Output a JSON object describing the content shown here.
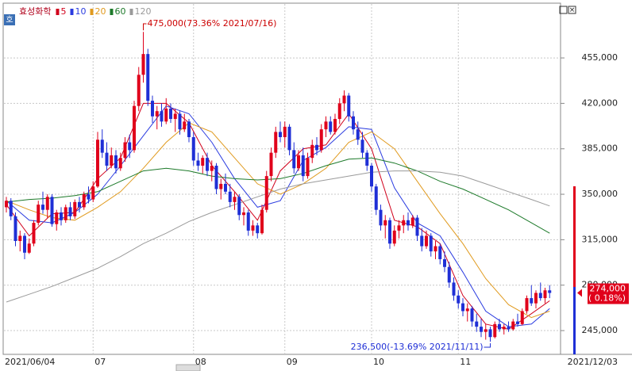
{
  "chart_data": {
    "type": "candlestick",
    "title": "효성화학",
    "up_color": "#e0001b",
    "down_color": "#1f2fd6",
    "categories": [
      "2021/06/04",
      null,
      null,
      null,
      null,
      null,
      null,
      null,
      null,
      null,
      null,
      null,
      null,
      null,
      null,
      null,
      null,
      null,
      null,
      "07",
      null,
      null,
      null,
      null,
      null,
      null,
      null,
      null,
      null,
      null,
      null,
      null,
      null,
      null,
      null,
      null,
      null,
      null,
      null,
      null,
      null,
      "08",
      null,
      null,
      null,
      null,
      null,
      null,
      null,
      null,
      null,
      null,
      null,
      null,
      null,
      null,
      null,
      null,
      null,
      null,
      null,
      "09",
      null,
      null,
      null,
      null,
      null,
      null,
      null,
      null,
      null,
      null,
      null,
      null,
      null,
      null,
      null,
      null,
      null,
      null,
      "10",
      null,
      null,
      null,
      null,
      null,
      null,
      null,
      null,
      null,
      null,
      null,
      null,
      null,
      null,
      null,
      null,
      null,
      null,
      "11",
      null,
      null,
      null,
      null,
      null,
      null,
      null,
      null,
      null,
      null,
      null,
      null,
      null,
      null,
      null,
      null,
      null,
      null,
      null
    ],
    "ohlc": [
      [
        340000,
        348000,
        336000,
        345000
      ],
      [
        345000,
        347000,
        330000,
        333000
      ],
      [
        333000,
        336000,
        310000,
        314000
      ],
      [
        314000,
        322000,
        306000,
        318000
      ],
      [
        318000,
        320000,
        300000,
        305000
      ],
      [
        305000,
        316000,
        304000,
        312000
      ],
      [
        312000,
        330000,
        310000,
        328000
      ],
      [
        328000,
        345000,
        326000,
        342000
      ],
      [
        342000,
        352000,
        335000,
        338000
      ],
      [
        338000,
        350000,
        332000,
        348000
      ],
      [
        348000,
        350000,
        325000,
        327000
      ],
      [
        327000,
        338000,
        322000,
        336000
      ],
      [
        336000,
        340000,
        326000,
        330000
      ],
      [
        330000,
        342000,
        328000,
        340000
      ],
      [
        340000,
        344000,
        330000,
        333000
      ],
      [
        333000,
        346000,
        331000,
        344000
      ],
      [
        344000,
        348000,
        336000,
        340000
      ],
      [
        340000,
        352000,
        338000,
        350000
      ],
      [
        350000,
        356000,
        343000,
        346000
      ],
      [
        346000,
        360000,
        344000,
        356000
      ],
      [
        356000,
        398000,
        355000,
        392000
      ],
      [
        392000,
        400000,
        378000,
        382000
      ],
      [
        382000,
        390000,
        368000,
        372000
      ],
      [
        372000,
        386000,
        370000,
        380000
      ],
      [
        380000,
        384000,
        366000,
        370000
      ],
      [
        370000,
        382000,
        368000,
        378000
      ],
      [
        378000,
        394000,
        375000,
        390000
      ],
      [
        390000,
        396000,
        378000,
        384000
      ],
      [
        384000,
        422000,
        382000,
        418000
      ],
      [
        418000,
        448000,
        414000,
        442000
      ],
      [
        442000,
        475000,
        436000,
        458000
      ],
      [
        458000,
        462000,
        418000,
        422000
      ],
      [
        422000,
        426000,
        405000,
        410000
      ],
      [
        410000,
        418000,
        400000,
        414000
      ],
      [
        414000,
        420000,
        402000,
        406000
      ],
      [
        406000,
        424000,
        404000,
        416000
      ],
      [
        416000,
        420000,
        405000,
        408000
      ],
      [
        408000,
        416000,
        398000,
        412000
      ],
      [
        412000,
        414000,
        396000,
        400000
      ],
      [
        400000,
        412000,
        398000,
        406000
      ],
      [
        406000,
        408000,
        390000,
        394000
      ],
      [
        394000,
        398000,
        372000,
        376000
      ],
      [
        376000,
        382000,
        368000,
        372000
      ],
      [
        372000,
        380000,
        366000,
        378000
      ],
      [
        378000,
        382000,
        364000,
        368000
      ],
      [
        368000,
        376000,
        360000,
        372000
      ],
      [
        372000,
        374000,
        350000,
        354000
      ],
      [
        354000,
        362000,
        346000,
        358000
      ],
      [
        358000,
        366000,
        350000,
        352000
      ],
      [
        352000,
        358000,
        340000,
        344000
      ],
      [
        344000,
        352000,
        338000,
        348000
      ],
      [
        348000,
        350000,
        330000,
        334000
      ],
      [
        334000,
        340000,
        326000,
        336000
      ],
      [
        336000,
        338000,
        318000,
        322000
      ],
      [
        322000,
        330000,
        318000,
        326000
      ],
      [
        326000,
        328000,
        316000,
        320000
      ],
      [
        320000,
        342000,
        319000,
        338000
      ],
      [
        338000,
        368000,
        336000,
        364000
      ],
      [
        364000,
        386000,
        360000,
        382000
      ],
      [
        382000,
        402000,
        378000,
        398000
      ],
      [
        398000,
        406000,
        390000,
        394000
      ],
      [
        394000,
        406000,
        386000,
        402000
      ],
      [
        402000,
        404000,
        380000,
        384000
      ],
      [
        384000,
        390000,
        366000,
        370000
      ],
      [
        370000,
        384000,
        368000,
        380000
      ],
      [
        380000,
        386000,
        360000,
        364000
      ],
      [
        364000,
        382000,
        362000,
        378000
      ],
      [
        378000,
        392000,
        374000,
        388000
      ],
      [
        388000,
        394000,
        380000,
        384000
      ],
      [
        384000,
        404000,
        382000,
        400000
      ],
      [
        400000,
        410000,
        394000,
        406000
      ],
      [
        406000,
        410000,
        396000,
        398000
      ],
      [
        398000,
        412000,
        396000,
        408000
      ],
      [
        408000,
        424000,
        404000,
        420000
      ],
      [
        420000,
        430000,
        414000,
        426000
      ],
      [
        426000,
        428000,
        406000,
        410000
      ],
      [
        410000,
        414000,
        396000,
        400000
      ],
      [
        400000,
        406000,
        388000,
        392000
      ],
      [
        392000,
        398000,
        378000,
        382000
      ],
      [
        382000,
        384000,
        368000,
        372000
      ],
      [
        372000,
        374000,
        352000,
        356000
      ],
      [
        356000,
        358000,
        334000,
        338000
      ],
      [
        338000,
        342000,
        322000,
        326000
      ],
      [
        326000,
        334000,
        316000,
        330000
      ],
      [
        330000,
        332000,
        308000,
        312000
      ],
      [
        312000,
        326000,
        310000,
        322000
      ],
      [
        322000,
        330000,
        316000,
        326000
      ],
      [
        326000,
        334000,
        320000,
        330000
      ],
      [
        330000,
        336000,
        322000,
        326000
      ],
      [
        326000,
        334000,
        324000,
        332000
      ],
      [
        332000,
        334000,
        314000,
        318000
      ],
      [
        318000,
        324000,
        306000,
        310000
      ],
      [
        310000,
        322000,
        308000,
        318000
      ],
      [
        318000,
        320000,
        302000,
        306000
      ],
      [
        306000,
        314000,
        300000,
        310000
      ],
      [
        310000,
        312000,
        296000,
        300000
      ],
      [
        300000,
        306000,
        290000,
        294000
      ],
      [
        294000,
        298000,
        278000,
        282000
      ],
      [
        282000,
        286000,
        268000,
        272000
      ],
      [
        272000,
        276000,
        262000,
        266000
      ],
      [
        266000,
        270000,
        256000,
        260000
      ],
      [
        260000,
        266000,
        252000,
        262000
      ],
      [
        262000,
        264000,
        248000,
        252000
      ],
      [
        252000,
        258000,
        244000,
        248000
      ],
      [
        248000,
        254000,
        240000,
        244000
      ],
      [
        244000,
        250000,
        238000,
        246000
      ],
      [
        246000,
        248000,
        236500,
        240000
      ],
      [
        240000,
        252000,
        239000,
        250000
      ],
      [
        250000,
        254000,
        244000,
        246000
      ],
      [
        246000,
        250000,
        242000,
        248000
      ],
      [
        248000,
        252000,
        244000,
        246000
      ],
      [
        246000,
        254000,
        245000,
        252000
      ],
      [
        252000,
        258000,
        248000,
        250000
      ],
      [
        250000,
        262000,
        249000,
        260000
      ],
      [
        260000,
        272000,
        258000,
        270000
      ],
      [
        270000,
        280000,
        264000,
        266000
      ],
      [
        266000,
        276000,
        262000,
        274000
      ],
      [
        274000,
        282000,
        268000,
        270000
      ],
      [
        270000,
        278000,
        266000,
        276000
      ],
      [
        276000,
        280000,
        270000,
        274000
      ]
    ],
    "x": [
      0,
      5,
      10,
      15,
      20,
      25,
      30,
      35,
      40,
      45,
      50,
      55,
      60,
      65,
      70,
      75,
      80,
      85,
      90,
      95,
      100,
      105,
      110,
      115,
      119
    ],
    "series": [
      {
        "name": "5",
        "color": "#d1001b",
        "values": [
          342000,
          318000,
          335000,
          336000,
          362000,
          378000,
          420000,
          420000,
          405000,
          372000,
          352000,
          330000,
          368000,
          385000,
          388000,
          412000,
          385000,
          330000,
          325000,
          312000,
          272000,
          250000,
          246000,
          258000,
          268000
        ]
      },
      {
        "name": "10",
        "color": "#2a3be0",
        "values": [
          345000,
          330000,
          328000,
          336000,
          350000,
          372000,
          395000,
          418000,
          412000,
          390000,
          362000,
          340000,
          345000,
          376000,
          386000,
          402000,
          400000,
          355000,
          328000,
          318000,
          290000,
          260000,
          248000,
          250000,
          262000
        ]
      },
      {
        "name": "20",
        "color": "#e09a1e",
        "values": [
          345000,
          338000,
          332000,
          330000,
          340000,
          352000,
          370000,
          390000,
          405000,
          398000,
          378000,
          358000,
          350000,
          358000,
          370000,
          390000,
          398000,
          385000,
          360000,
          335000,
          312000,
          285000,
          265000,
          255000,
          260000
        ]
      },
      {
        "name": "60",
        "color": "#1d7a2a",
        "values": [
          344000,
          346000,
          347000,
          349000,
          352000,
          360000,
          368000,
          370000,
          368000,
          364000,
          362000,
          361000,
          362000,
          366000,
          372000,
          377000,
          378000,
          374000,
          368000,
          360000,
          354000,
          346000,
          338000,
          328000,
          320000
        ]
      },
      {
        "name": "120",
        "color": "#9a9a9a",
        "values": [
          267000,
          273000,
          279000,
          286000,
          293000,
          302000,
          312000,
          320000,
          329000,
          336000,
          342000,
          348000,
          354000,
          358000,
          361000,
          364000,
          367000,
          368000,
          368000,
          367000,
          364000,
          358000,
          352000,
          346000,
          341000
        ]
      }
    ],
    "ylim": [
      226700,
      487400
    ],
    "yticks": [
      {
        "value": 245000,
        "label": "245,000"
      },
      {
        "value": 280000,
        "label": "280,000"
      },
      {
        "value": 315000,
        "label": "315,000"
      },
      {
        "value": 350000,
        "label": "350,000"
      },
      {
        "value": 385000,
        "label": "385,000"
      },
      {
        "value": 420000,
        "label": "420,000"
      },
      {
        "value": 455000,
        "label": "455,000"
      }
    ],
    "grid": true,
    "high_annotation": "475,000(73.36% 2021/07/16)",
    "low_annotation": "236,500(-13.69% 2021/11/11)",
    "last_price_label": "274,000",
    "last_change_label": "( 0.18%)",
    "end_date_label": "2021/12/03"
  }
}
